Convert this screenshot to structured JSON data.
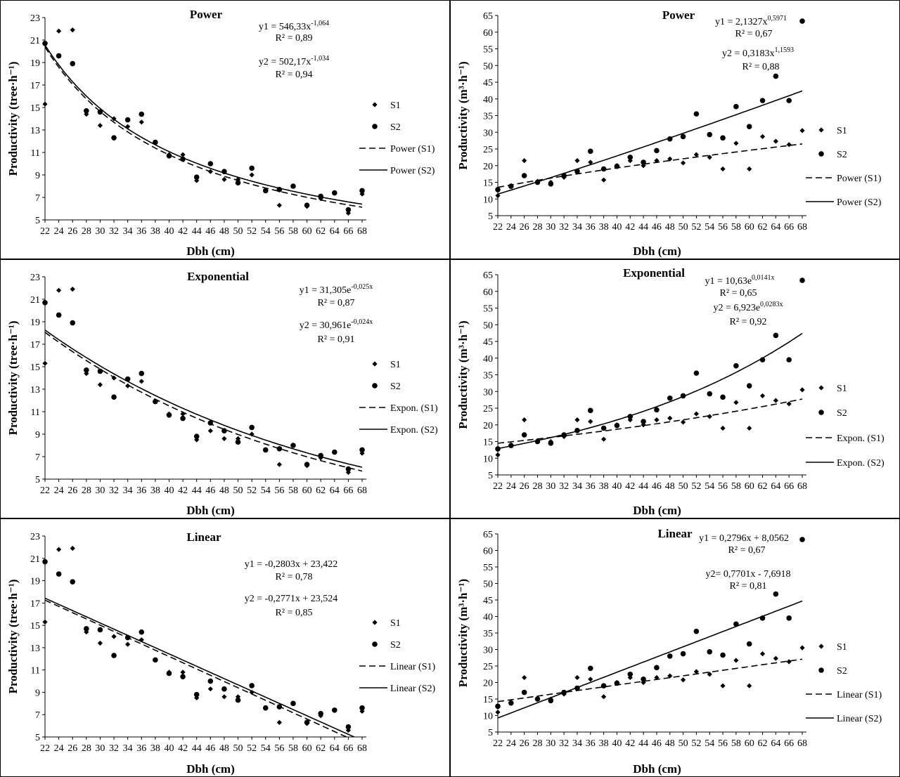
{
  "chart_data": [
    {
      "type": "scatter",
      "title": "Power",
      "xlabel": "Dbh (cm)",
      "ylabel": "Productivity (tree·h⁻¹)",
      "xlim": [
        22,
        68
      ],
      "ylim": [
        5,
        23
      ],
      "xticks": [
        22,
        24,
        26,
        28,
        30,
        32,
        34,
        36,
        38,
        40,
        42,
        44,
        46,
        48,
        50,
        52,
        54,
        56,
        58,
        60,
        62,
        64,
        66,
        68
      ],
      "yticks": [
        5,
        7,
        9,
        11,
        13,
        15,
        17,
        19,
        21,
        23
      ],
      "series": [
        {
          "name": "S1",
          "marker": "diamond",
          "x": [
            22,
            24,
            26,
            28,
            30,
            32,
            34,
            36,
            40,
            42,
            44,
            46,
            48,
            50,
            52,
            54,
            56,
            60,
            62,
            66,
            68
          ],
          "y": [
            15.3,
            21.8,
            21.9,
            14.4,
            13.4,
            14.0,
            13.3,
            13.7,
            10.8,
            10.8,
            8.5,
            9.3,
            8.6,
            8.6,
            9.0,
            7.6,
            6.3,
            6.2,
            6.9,
            5.6,
            7.3
          ]
        },
        {
          "name": "S2",
          "marker": "circle",
          "x": [
            22,
            24,
            26,
            28,
            30,
            32,
            34,
            36,
            38,
            40,
            42,
            44,
            46,
            48,
            50,
            52,
            54,
            56,
            58,
            60,
            62,
            64,
            66,
            68
          ],
          "y": [
            20.7,
            19.6,
            18.9,
            14.7,
            14.6,
            12.3,
            13.9,
            14.4,
            11.9,
            10.7,
            10.4,
            8.8,
            10.0,
            9.3,
            8.3,
            9.6,
            7.6,
            7.7,
            8.0,
            6.3,
            7.1,
            7.4,
            5.9,
            7.6
          ]
        }
      ],
      "fits": [
        {
          "name": "Power (S1)",
          "series": "S1",
          "model": "power",
          "a": 546.33,
          "b": -1.064,
          "equation": "y1 = 546,33x",
          "exponent": "-1,064",
          "r2": "R² = 0,89",
          "dashed": true
        },
        {
          "name": "Power (S2)",
          "series": "S2",
          "model": "power",
          "a": 502.17,
          "b": -1.034,
          "equation": "y2 = 502,17x",
          "exponent": "-1,034",
          "r2": "R² = 0,94",
          "dashed": false
        }
      ],
      "legend": "right"
    },
    {
      "type": "scatter",
      "title": "Power",
      "xlabel": "Dbh (cm)",
      "ylabel": "Productivity (m³·h⁻¹)",
      "xlim": [
        22,
        68
      ],
      "ylim": [
        5,
        65
      ],
      "xticks": [
        22,
        24,
        26,
        28,
        30,
        32,
        34,
        36,
        38,
        40,
        42,
        44,
        46,
        48,
        50,
        52,
        54,
        56,
        58,
        60,
        62,
        64,
        66,
        68
      ],
      "yticks": [
        5,
        10,
        15,
        20,
        25,
        30,
        35,
        40,
        45,
        50,
        55,
        60,
        65
      ],
      "series": [
        {
          "name": "S1",
          "marker": "diamond",
          "x": [
            22,
            24,
            26,
            28,
            30,
            32,
            34,
            36,
            38,
            40,
            42,
            44,
            46,
            48,
            50,
            52,
            54,
            56,
            58,
            60,
            62,
            64,
            66,
            68
          ],
          "y": [
            11.0,
            14.0,
            21.5,
            15.3,
            15.0,
            16.5,
            21.5,
            21.0,
            15.7,
            20.0,
            21.5,
            20.0,
            21.5,
            22.0,
            20.8,
            23.3,
            22.5,
            19.0,
            26.7,
            19.0,
            28.7,
            27.3,
            26.3,
            30.5
          ]
        },
        {
          "name": "S2",
          "marker": "circle",
          "x": [
            22,
            24,
            26,
            28,
            30,
            32,
            34,
            36,
            38,
            40,
            42,
            44,
            46,
            48,
            50,
            52,
            54,
            56,
            58,
            60,
            62,
            64,
            66,
            68
          ],
          "y": [
            12.8,
            13.8,
            17.0,
            15.0,
            14.5,
            17.0,
            18.3,
            24.3,
            19.0,
            19.8,
            22.5,
            21.0,
            24.5,
            28.0,
            28.7,
            35.5,
            29.3,
            28.3,
            37.7,
            31.7,
            39.5,
            46.8,
            39.5,
            63.3
          ]
        }
      ],
      "fits": [
        {
          "name": "Power (S1)",
          "series": "S1",
          "model": "power",
          "a": 2.1327,
          "b": 0.5971,
          "equation": "y1 = 2,1327x",
          "exponent": "0,5971",
          "r2": "R² = 0,67",
          "dashed": true
        },
        {
          "name": "Power (S2)",
          "series": "S2",
          "model": "power",
          "a": 0.3183,
          "b": 1.1593,
          "equation": "y2 = 0,3183x",
          "exponent": "1,1593",
          "r2": "R² = 0,88",
          "dashed": false
        }
      ],
      "legend": "right"
    },
    {
      "type": "scatter",
      "title": "Exponential",
      "xlabel": "Dbh (cm)",
      "ylabel": "Productivity (tree·h⁻¹)",
      "xlim": [
        22,
        68
      ],
      "ylim": [
        5,
        23
      ],
      "xticks": [
        22,
        24,
        26,
        28,
        30,
        32,
        34,
        36,
        38,
        40,
        42,
        44,
        46,
        48,
        50,
        52,
        54,
        56,
        58,
        60,
        62,
        64,
        66,
        68
      ],
      "yticks": [
        5,
        7,
        9,
        11,
        13,
        15,
        17,
        19,
        21,
        23
      ],
      "series": [
        {
          "name": "S1",
          "marker": "diamond",
          "x": [
            22,
            24,
            26,
            28,
            30,
            32,
            34,
            36,
            40,
            42,
            44,
            46,
            48,
            50,
            52,
            54,
            56,
            60,
            62,
            66,
            68
          ],
          "y": [
            15.3,
            21.8,
            21.9,
            14.4,
            13.4,
            14.0,
            13.3,
            13.7,
            10.8,
            10.8,
            8.5,
            9.3,
            8.6,
            8.6,
            9.0,
            7.6,
            6.3,
            6.2,
            6.9,
            5.6,
            7.3
          ]
        },
        {
          "name": "S2",
          "marker": "circle",
          "x": [
            22,
            24,
            26,
            28,
            30,
            32,
            34,
            36,
            38,
            40,
            42,
            44,
            46,
            48,
            50,
            52,
            54,
            56,
            58,
            60,
            62,
            64,
            66,
            68
          ],
          "y": [
            20.7,
            19.6,
            18.9,
            14.7,
            14.6,
            12.3,
            13.9,
            14.4,
            11.9,
            10.7,
            10.4,
            8.8,
            10.0,
            9.3,
            8.3,
            9.6,
            7.6,
            7.7,
            8.0,
            6.3,
            7.1,
            7.4,
            5.9,
            7.6
          ]
        }
      ],
      "fits": [
        {
          "name": "Expon. (S1)",
          "series": "S1",
          "model": "exponential",
          "a": 31.305,
          "b": -0.025,
          "equation": "y1 = 31,305e",
          "exponent": "-0,025x",
          "r2": "R² = 0,87",
          "dashed": true
        },
        {
          "name": "Expon. (S2)",
          "series": "S2",
          "model": "exponential",
          "a": 30.961,
          "b": -0.024,
          "equation": "y2 = 30,961e",
          "exponent": "-0,024x",
          "r2": "R² = 0,91",
          "dashed": false
        }
      ],
      "legend": "right"
    },
    {
      "type": "scatter",
      "title": "Exponential",
      "xlabel": "Dbh (cm)",
      "ylabel": "Productivity (m³·h⁻¹)",
      "xlim": [
        22,
        68
      ],
      "ylim": [
        5,
        65
      ],
      "xticks": [
        22,
        24,
        26,
        28,
        30,
        32,
        34,
        36,
        38,
        40,
        42,
        44,
        46,
        48,
        50,
        52,
        54,
        56,
        58,
        60,
        62,
        64,
        66,
        68
      ],
      "yticks": [
        5,
        10,
        15,
        20,
        25,
        30,
        35,
        40,
        45,
        50,
        55,
        60,
        65
      ],
      "series": [
        {
          "name": "S1",
          "marker": "diamond",
          "x": [
            22,
            24,
            26,
            28,
            30,
            32,
            34,
            36,
            38,
            40,
            42,
            44,
            46,
            48,
            50,
            52,
            54,
            56,
            58,
            60,
            62,
            64,
            66,
            68
          ],
          "y": [
            11.0,
            14.0,
            21.5,
            15.3,
            15.0,
            16.5,
            21.5,
            21.0,
            15.7,
            20.0,
            21.5,
            20.0,
            21.5,
            22.0,
            20.8,
            23.3,
            22.5,
            19.0,
            26.7,
            19.0,
            28.7,
            27.3,
            26.3,
            30.5
          ]
        },
        {
          "name": "S2",
          "marker": "circle",
          "x": [
            22,
            24,
            26,
            28,
            30,
            32,
            34,
            36,
            38,
            40,
            42,
            44,
            46,
            48,
            50,
            52,
            54,
            56,
            58,
            60,
            62,
            64,
            66,
            68
          ],
          "y": [
            12.8,
            13.8,
            17.0,
            15.0,
            14.5,
            17.0,
            18.3,
            24.3,
            19.0,
            19.8,
            22.5,
            21.0,
            24.5,
            28.0,
            28.7,
            35.5,
            29.3,
            28.3,
            37.7,
            31.7,
            39.5,
            46.8,
            39.5,
            63.3
          ]
        }
      ],
      "fits": [
        {
          "name": "Expon. (S1)",
          "series": "S1",
          "model": "exponential",
          "a": 10.63,
          "b": 0.0141,
          "equation": "y1 = 10,63e",
          "exponent": "0,0141x",
          "r2": "R² = 0,65",
          "dashed": true
        },
        {
          "name": "Expon. (S2)",
          "series": "S2",
          "model": "exponential",
          "a": 6.923,
          "b": 0.0283,
          "equation": "y2 = 6,923e",
          "exponent": "0,0283x",
          "r2": "R² = 0,92",
          "dashed": false
        }
      ],
      "legend": "right"
    },
    {
      "type": "scatter",
      "title": "Linear",
      "xlabel": "Dbh (cm)",
      "ylabel": "Productivity (tree·h⁻¹)",
      "xlim": [
        22,
        68
      ],
      "ylim": [
        5,
        23
      ],
      "xticks": [
        22,
        24,
        26,
        28,
        30,
        32,
        34,
        36,
        38,
        40,
        42,
        44,
        46,
        48,
        50,
        52,
        54,
        56,
        58,
        60,
        62,
        64,
        66,
        68
      ],
      "yticks": [
        5,
        7,
        9,
        11,
        13,
        15,
        17,
        19,
        21,
        23
      ],
      "series": [
        {
          "name": "S1",
          "marker": "diamond",
          "x": [
            22,
            24,
            26,
            28,
            30,
            32,
            34,
            36,
            40,
            42,
            44,
            46,
            48,
            50,
            52,
            54,
            56,
            60,
            62,
            66,
            68
          ],
          "y": [
            15.3,
            21.8,
            21.9,
            14.4,
            13.4,
            14.0,
            13.3,
            13.7,
            10.8,
            10.8,
            8.5,
            9.3,
            8.6,
            8.6,
            9.0,
            7.6,
            6.3,
            6.2,
            6.9,
            5.6,
            7.3
          ]
        },
        {
          "name": "S2",
          "marker": "circle",
          "x": [
            22,
            24,
            26,
            28,
            30,
            32,
            34,
            36,
            38,
            40,
            42,
            44,
            46,
            48,
            50,
            52,
            54,
            56,
            58,
            60,
            62,
            64,
            66,
            68
          ],
          "y": [
            20.7,
            19.6,
            18.9,
            14.7,
            14.6,
            12.3,
            13.9,
            14.4,
            11.9,
            10.7,
            10.4,
            8.8,
            10.0,
            9.3,
            8.3,
            9.6,
            7.6,
            7.7,
            8.0,
            6.3,
            7.1,
            7.4,
            5.9,
            7.6
          ]
        }
      ],
      "fits": [
        {
          "name": "Linear (S1)",
          "series": "S1",
          "model": "linear",
          "a": -0.2803,
          "b": 23.422,
          "equation": "y1 = -0,2803x + 23,422",
          "exponent": "",
          "r2": "R² = 0,78",
          "dashed": true
        },
        {
          "name": "Linear (S2)",
          "series": "S2",
          "model": "linear",
          "a": -0.2771,
          "b": 23.524,
          "equation": "y2 = -0,2771x + 23,524",
          "exponent": "",
          "r2": "R² = 0,85",
          "dashed": false
        }
      ],
      "legend": "right"
    },
    {
      "type": "scatter",
      "title": "Linear",
      "xlabel": "Dbh (cm)",
      "ylabel": "Productivity (m³·h⁻¹)",
      "xlim": [
        22,
        68
      ],
      "ylim": [
        5,
        65
      ],
      "xticks": [
        22,
        24,
        26,
        28,
        30,
        32,
        34,
        36,
        38,
        40,
        42,
        44,
        46,
        48,
        50,
        52,
        54,
        56,
        58,
        60,
        62,
        64,
        66,
        68
      ],
      "yticks": [
        5,
        10,
        15,
        20,
        25,
        30,
        35,
        40,
        45,
        50,
        55,
        60,
        65
      ],
      "series": [
        {
          "name": "S1",
          "marker": "diamond",
          "x": [
            22,
            24,
            26,
            28,
            30,
            32,
            34,
            36,
            38,
            40,
            42,
            44,
            46,
            48,
            50,
            52,
            54,
            56,
            58,
            60,
            62,
            64,
            66,
            68
          ],
          "y": [
            11.0,
            14.0,
            21.5,
            15.3,
            15.0,
            16.5,
            21.5,
            21.0,
            15.7,
            20.0,
            21.5,
            20.0,
            21.5,
            22.0,
            20.8,
            23.3,
            22.5,
            19.0,
            26.7,
            19.0,
            28.7,
            27.3,
            26.3,
            30.5
          ]
        },
        {
          "name": "S2",
          "marker": "circle",
          "x": [
            22,
            24,
            26,
            28,
            30,
            32,
            34,
            36,
            38,
            40,
            42,
            44,
            46,
            48,
            50,
            52,
            54,
            56,
            58,
            60,
            62,
            64,
            66,
            68
          ],
          "y": [
            12.8,
            13.8,
            17.0,
            15.0,
            14.5,
            17.0,
            18.3,
            24.3,
            19.0,
            19.8,
            22.5,
            21.0,
            24.5,
            28.0,
            28.7,
            35.5,
            29.3,
            28.3,
            37.7,
            31.7,
            39.5,
            46.8,
            39.5,
            63.3
          ]
        }
      ],
      "fits": [
        {
          "name": "Linear (S1)",
          "series": "S1",
          "model": "linear",
          "a": 0.2796,
          "b": 8.0562,
          "equation": "y1 = 0,2796x + 8,0562",
          "exponent": "",
          "r2": "R² = 0,67",
          "dashed": true
        },
        {
          "name": "Linear (S2)",
          "series": "S2",
          "model": "linear",
          "a": 0.7701,
          "b": -7.6918,
          "equation": "y2= 0,7701x - 7,6918",
          "exponent": "",
          "r2": "R² = 0,81",
          "dashed": false
        }
      ],
      "legend": "right"
    }
  ]
}
